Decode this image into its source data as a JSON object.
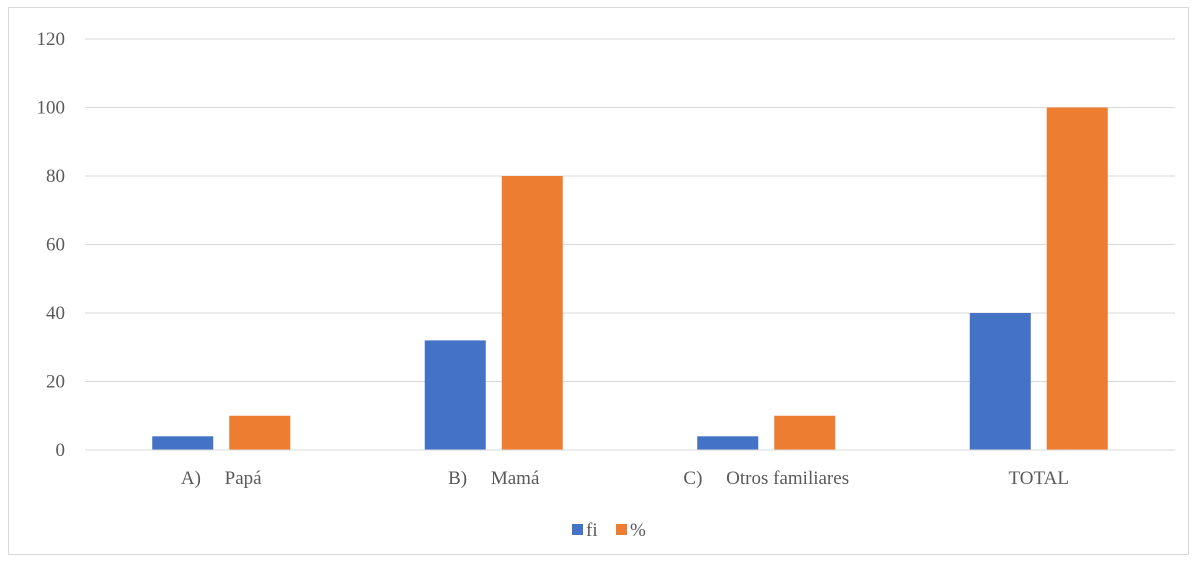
{
  "chart_data": {
    "type": "bar",
    "categories": [
      "A)     Papá",
      "B)     Mamá",
      "C)     Otros familiares",
      "TOTAL"
    ],
    "series": [
      {
        "name": "fi",
        "values": [
          4,
          32,
          4,
          40
        ],
        "color": "#4472c4"
      },
      {
        "name": "%",
        "values": [
          10,
          80,
          10,
          100
        ],
        "color": "#ed7d31"
      }
    ],
    "ylim": [
      0,
      120
    ],
    "yticks": [
      0,
      20,
      40,
      60,
      80,
      100,
      120
    ],
    "grid": true,
    "legend_position": "bottom"
  }
}
